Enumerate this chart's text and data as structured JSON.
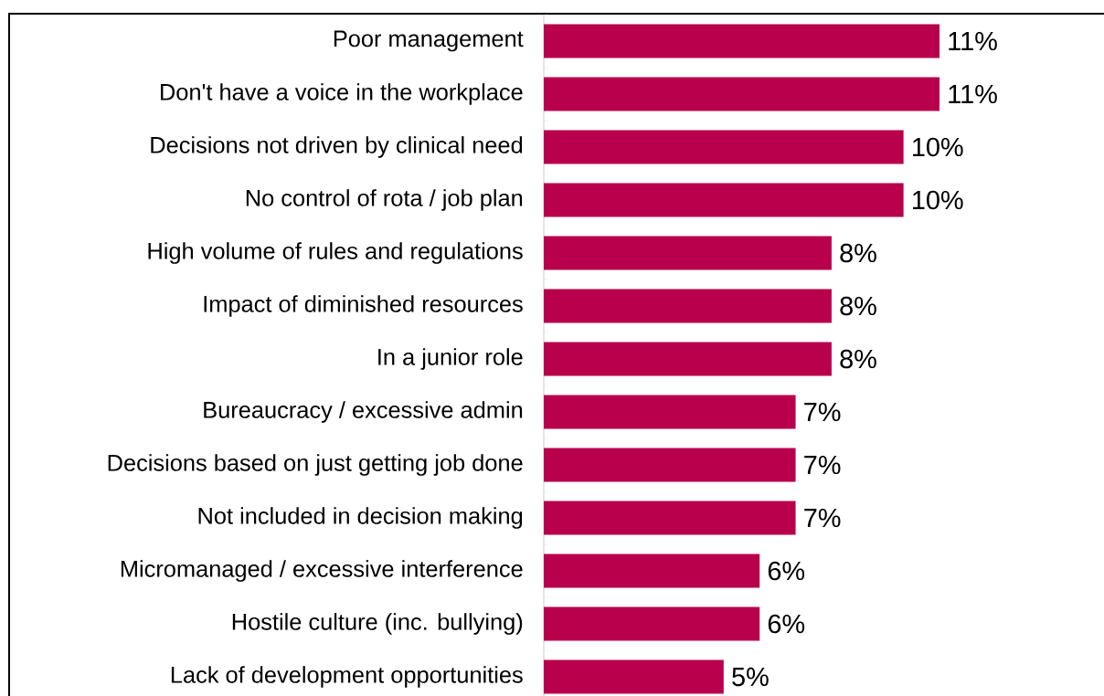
{
  "chart_data": {
    "type": "bar",
    "orientation": "horizontal",
    "color": "#b8004c",
    "categories": [
      "Poor management",
      "Don't have a voice in the workplace",
      "Decisions not driven by clinical need",
      "No control of rota / job plan",
      "High volume of rules and regulations",
      "Impact of diminished resources",
      "In a junior role",
      "Bureaucracy / excessive admin",
      "Decisions based on just getting job done",
      "Not included in decision making",
      "Micromanaged / excessive interference",
      "Hostile culture (inc. bullying)",
      "Lack of development opportunities"
    ],
    "values": [
      11,
      11,
      10,
      10,
      8,
      8,
      8,
      7,
      7,
      7,
      6,
      6,
      5
    ],
    "value_labels": [
      "11%",
      "11%",
      "10%",
      "10%",
      "8%",
      "8%",
      "8%",
      "7%",
      "7%",
      "7%",
      "6%",
      "6%",
      "5%"
    ]
  }
}
